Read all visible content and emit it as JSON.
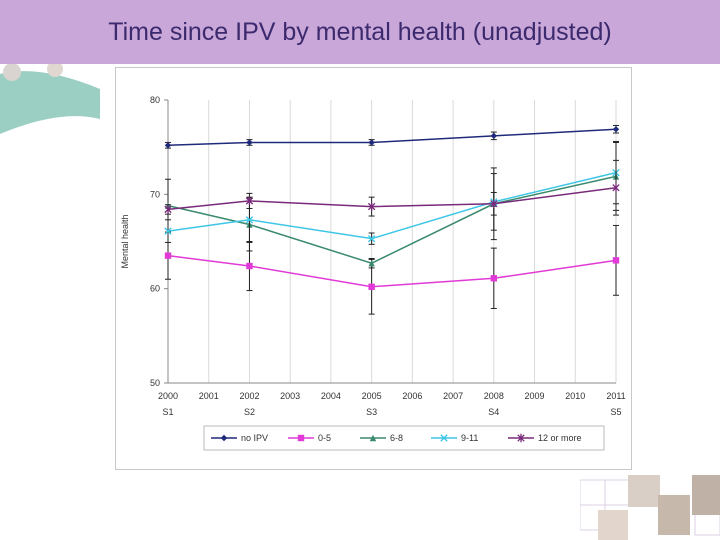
{
  "slide": {
    "title": "Time since IPV by mental health (unadjusted)"
  },
  "colors": {
    "title_bar": "#c9a7d8",
    "title_text": "#3b2a6e"
  },
  "chart_data": {
    "type": "line",
    "title": "",
    "xlabel": "",
    "ylabel": "Mental health",
    "x": [
      "2000",
      "2001",
      "2002",
      "2003",
      "2004",
      "2005",
      "2006",
      "2007",
      "2008",
      "2009",
      "2010",
      "2011"
    ],
    "ylim": [
      50,
      80
    ],
    "yticks": [
      50,
      60,
      70,
      80
    ],
    "grid": "vertical",
    "survey_labels": [
      {
        "x": "2000",
        "label": "S1"
      },
      {
        "x": "2002",
        "label": "S2"
      },
      {
        "x": "2005",
        "label": "S3"
      },
      {
        "x": "2008",
        "label": "S4"
      },
      {
        "x": "2011",
        "label": "S5"
      }
    ],
    "series": [
      {
        "name": "no IPV",
        "color": "#1f2a7a",
        "marker": "diamond",
        "points": [
          [
            "2000",
            75.2
          ],
          [
            "2002",
            75.5
          ],
          [
            "2005",
            75.5
          ],
          [
            "2008",
            76.2
          ],
          [
            "2011",
            76.9
          ]
        ],
        "err": [
          0.3,
          0.3,
          0.3,
          0.4,
          0.4
        ]
      },
      {
        "name": "0-5",
        "color": "#e23ad6",
        "marker": "square",
        "points": [
          [
            "2000",
            63.5
          ],
          [
            "2002",
            62.4
          ],
          [
            "2005",
            60.2
          ],
          [
            "2008",
            61.1
          ],
          [
            "2011",
            63.0
          ]
        ],
        "err": [
          2.5,
          2.6,
          2.9,
          3.2,
          3.7
        ]
      },
      {
        "name": "6-8",
        "color": "#3a8a6e",
        "marker": "triangle",
        "points": [
          [
            "2000",
            68.8
          ],
          [
            "2002",
            66.8
          ],
          [
            "2005",
            62.7
          ],
          [
            "2008",
            69.0
          ],
          [
            "2011",
            71.9
          ]
        ],
        "err": [
          2.8,
          2.8,
          0.5,
          3.8,
          3.6
        ]
      },
      {
        "name": "9-11",
        "color": "#3ec6e6",
        "marker": "x",
        "points": [
          [
            "2000",
            66.1
          ],
          [
            "2002",
            67.3
          ],
          [
            "2005",
            65.3
          ],
          [
            "2008",
            69.2
          ],
          [
            "2011",
            72.3
          ]
        ],
        "err": [
          1.2,
          2.4,
          0.6,
          3.0,
          3.3
        ]
      },
      {
        "name": "12 or more",
        "color": "#7a2a7a",
        "marker": "star",
        "points": [
          [
            "2000",
            68.4
          ],
          [
            "2002",
            69.3
          ],
          [
            "2005",
            68.7
          ],
          [
            "2008",
            69.0
          ],
          [
            "2011",
            70.7
          ]
        ],
        "err": [
          0.5,
          0.8,
          1.0,
          1.2,
          2.9
        ]
      }
    ],
    "legend": {
      "position": "bottom"
    }
  }
}
